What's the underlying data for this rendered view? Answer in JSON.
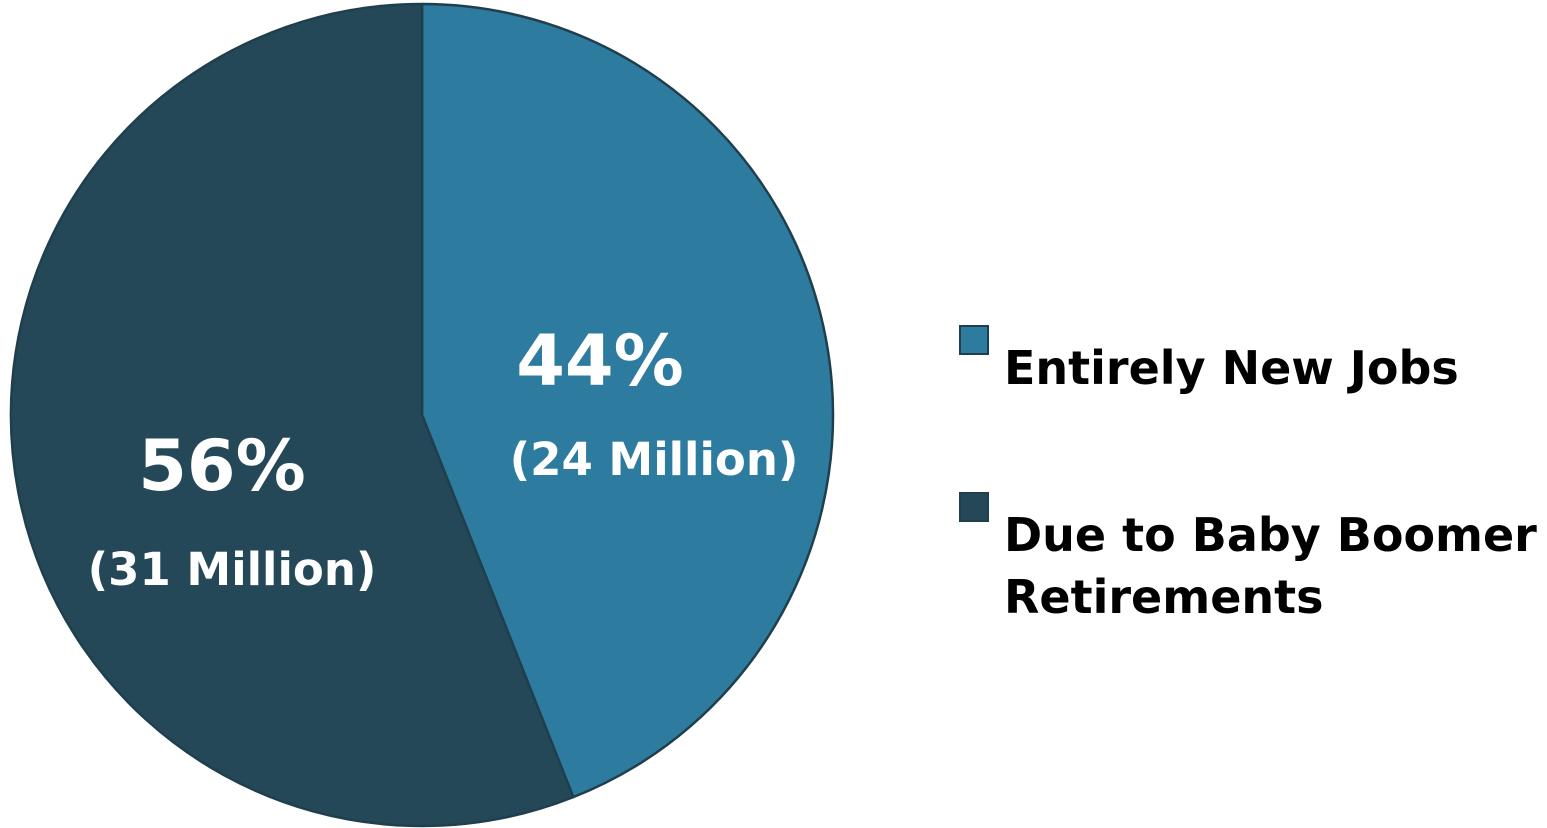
{
  "chart_data": {
    "type": "pie",
    "title": "",
    "slices": [
      {
        "name": "Entirely New Jobs",
        "value": 44,
        "percent_label": "44%",
        "sub_label": "(24 Million)",
        "color": "#2e7ba0"
      },
      {
        "name": "Due to Baby Boomer Retirements",
        "value": 56,
        "percent_label": "56%",
        "sub_label": "(31 Million)",
        "color": "#244858"
      }
    ],
    "legend": {
      "placement": "right",
      "entries": [
        {
          "lines": [
            "Entirely New Jobs"
          ],
          "color": "#2e7ba0"
        },
        {
          "lines": [
            "Due to Baby Boomer",
            "Retirements"
          ],
          "color": "#244858"
        }
      ]
    },
    "start_angle": "12 o'clock",
    "direction": "clockwise",
    "border_color": "#1f3f4d"
  }
}
